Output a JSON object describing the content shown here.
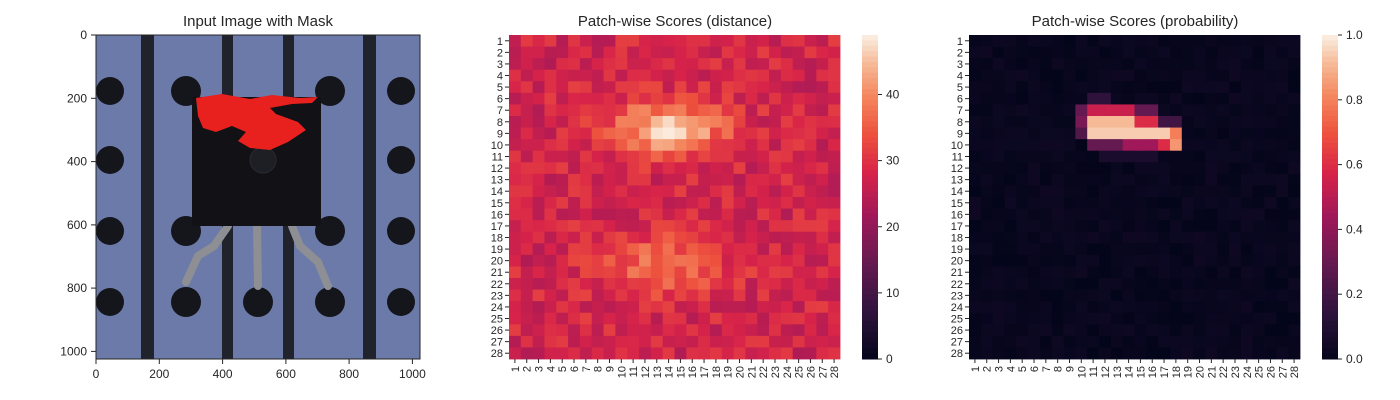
{
  "chart_data": [
    {
      "type": "image",
      "title": "Input Image with Mask",
      "xticks": [
        "0",
        "200",
        "400",
        "600",
        "800",
        "1000"
      ],
      "yticks": [
        "0",
        "200",
        "400",
        "600",
        "800",
        "1000"
      ],
      "xlim": [
        0,
        1024
      ],
      "ylim": [
        1024,
        0
      ],
      "background_color": "#6b7aa8",
      "mask_color": "#e8201e"
    },
    {
      "type": "heatmap",
      "title": "Patch-wise Scores (distance)",
      "grid_size": 28,
      "row_labels": [
        "1",
        "2",
        "3",
        "4",
        "5",
        "6",
        "7",
        "8",
        "9",
        "10",
        "11",
        "12",
        "13",
        "14",
        "15",
        "16",
        "17",
        "18",
        "19",
        "20",
        "21",
        "22",
        "23",
        "24",
        "25",
        "26",
        "27",
        "28"
      ],
      "col_labels": [
        "1",
        "2",
        "3",
        "4",
        "5",
        "6",
        "7",
        "8",
        "9",
        "10",
        "11",
        "12",
        "13",
        "14",
        "15",
        "16",
        "17",
        "18",
        "19",
        "20",
        "21",
        "22",
        "23",
        "24",
        "25",
        "26",
        "27",
        "28"
      ],
      "vmin": 0,
      "vmax": 49,
      "colorbar_ticks": [
        "0",
        "10",
        "20",
        "30",
        "40"
      ],
      "colormap": "rocket",
      "base": 28,
      "blobs": [
        {
          "row": 8.6,
          "col": 14.0,
          "sr": 1.6,
          "sc": 3.3,
          "amp": 19
        },
        {
          "row": 20.5,
          "col": 13.5,
          "sr": 1.8,
          "sc": 3.6,
          "amp": 10
        }
      ],
      "seed": 7
    },
    {
      "type": "heatmap",
      "title": "Patch-wise Scores (probability)",
      "grid_size": 28,
      "row_labels": [
        "1",
        "2",
        "3",
        "4",
        "5",
        "6",
        "7",
        "8",
        "9",
        "10",
        "11",
        "12",
        "13",
        "14",
        "15",
        "16",
        "17",
        "18",
        "19",
        "20",
        "21",
        "22",
        "23",
        "24",
        "25",
        "26",
        "27",
        "28"
      ],
      "col_labels": [
        "1",
        "2",
        "3",
        "4",
        "5",
        "6",
        "7",
        "8",
        "9",
        "10",
        "11",
        "12",
        "13",
        "14",
        "15",
        "16",
        "17",
        "18",
        "19",
        "20",
        "21",
        "22",
        "23",
        "24",
        "25",
        "26",
        "27",
        "28"
      ],
      "vmin": 0,
      "vmax": 1,
      "colorbar_ticks": [
        "0.0",
        "0.2",
        "0.4",
        "0.6",
        "0.8",
        "1.0"
      ],
      "colormap": "rocket",
      "hot_cells": [
        {
          "row": 6,
          "cols": [
            11,
            12
          ],
          "value": 0.15
        },
        {
          "row": 7,
          "cols": [
            10
          ],
          "value": 0.3
        },
        {
          "row": 7,
          "cols": [
            11,
            12,
            13,
            14
          ],
          "value": 0.55
        },
        {
          "row": 7,
          "cols": [
            15,
            16
          ],
          "value": 0.3
        },
        {
          "row": 8,
          "cols": [
            10
          ],
          "value": 0.35
        },
        {
          "row": 8,
          "cols": [
            11,
            12,
            13,
            14
          ],
          "value": 0.92
        },
        {
          "row": 8,
          "cols": [
            15,
            16
          ],
          "value": 0.6
        },
        {
          "row": 8,
          "cols": [
            17,
            18
          ],
          "value": 0.2
        },
        {
          "row": 9,
          "cols": [
            10
          ],
          "value": 0.25
        },
        {
          "row": 9,
          "cols": [
            11,
            12,
            13,
            14,
            15,
            16,
            17
          ],
          "value": 0.95
        },
        {
          "row": 9,
          "cols": [
            18
          ],
          "value": 0.8
        },
        {
          "row": 10,
          "cols": [
            11,
            12,
            13
          ],
          "value": 0.3
        },
        {
          "row": 10,
          "cols": [
            14,
            15,
            16
          ],
          "value": 0.45
        },
        {
          "row": 10,
          "cols": [
            17
          ],
          "value": 0.6
        },
        {
          "row": 10,
          "cols": [
            18
          ],
          "value": 0.85
        },
        {
          "row": 11,
          "cols": [
            12,
            13,
            14,
            15,
            16
          ],
          "value": 0.08
        }
      ]
    }
  ]
}
